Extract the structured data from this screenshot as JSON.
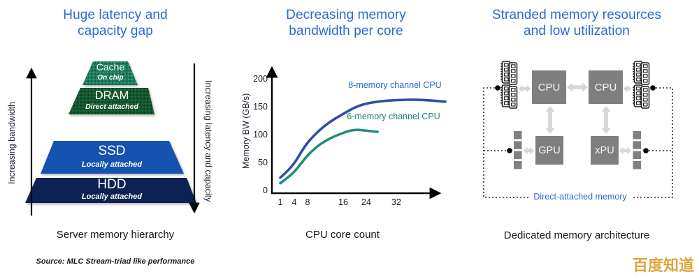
{
  "colors": {
    "title_blue": "#2A6AD4",
    "box_gray": "#7F7F7F",
    "arrow_gray": "#D6D6D6",
    "cache_green": "#1F7B5B",
    "dram_green": "#14592E",
    "ssd_blue": "#1252B0",
    "hdd_navy": "#0E2453",
    "watermark_gold": "#DFA63E",
    "link_blue": "#2E6AD0"
  },
  "left_panel": {
    "title": "Huge latency and\ncapacity gap",
    "left_axis_label": "Increasing bandwidth",
    "right_axis_label": "Increasing latency and capacity",
    "layers": [
      {
        "name": "Cache",
        "sub": "On chip"
      },
      {
        "name": "DRAM",
        "sub": "Direct attached"
      },
      {
        "name": "SSD",
        "sub": "Locally attached"
      },
      {
        "name": "HDD",
        "sub": "Locally attached"
      }
    ],
    "caption": "Server memory hierarchy",
    "source_note": "Source: MLC Stream-triad like performance"
  },
  "middle_panel": {
    "title": "Decreasing memory\nbandwidth per core",
    "caption": "CPU core count"
  },
  "right_panel": {
    "title": "Stranded memory resources\nand low utilization",
    "nodes": {
      "cpu_left": "CPU",
      "cpu_right": "CPU",
      "gpu": "GPU",
      "xpu": "xPU"
    },
    "dotted_region_label": "Direct-attached memory",
    "caption": "Dedicated memory architecture"
  },
  "watermark": {
    "text": "百度知道"
  },
  "chart_data": {
    "type": "line",
    "title": "Decreasing memory bandwidth per core",
    "xlabel": "CPU core count",
    "ylabel": "Memory BW (GB/s)",
    "x_ticks": [
      1,
      4,
      8,
      16,
      24,
      32
    ],
    "y_ticks": [
      0,
      50,
      100,
      150,
      200
    ],
    "xlim": [
      0,
      46
    ],
    "ylim": [
      0,
      230
    ],
    "grid": false,
    "legend_position": "inline",
    "series": [
      {
        "name": "8-memory channel CPU",
        "color": "#2E4FA3",
        "label_color": "#2965D4",
        "x": [
          1,
          2,
          4,
          6,
          8,
          10,
          12,
          14,
          16,
          20,
          24,
          28,
          32,
          38,
          45
        ],
        "values": [
          23,
          30,
          48,
          68,
          86,
          103,
          117,
          128,
          137,
          149,
          156,
          160,
          162,
          163,
          159
        ]
      },
      {
        "name": "6-memory channel CPU",
        "color": "#1E8E7C",
        "label_color": "#188273",
        "x": [
          1,
          2,
          4,
          6,
          8,
          10,
          12,
          14,
          16,
          18,
          21,
          24,
          27
        ],
        "values": [
          13,
          19,
          33,
          48,
          63,
          78,
          89,
          97,
          103,
          107,
          109,
          107,
          105
        ]
      }
    ]
  }
}
